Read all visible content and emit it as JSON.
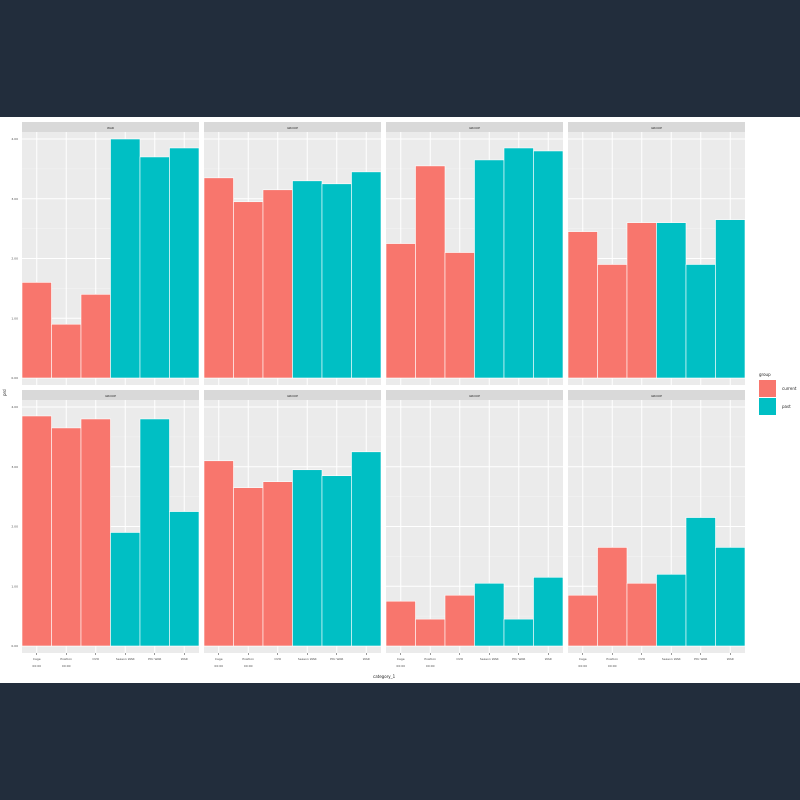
{
  "chart_data": {
    "type": "bar",
    "ylabel": "prd",
    "xlabel": "category_1",
    "ylim": [
      0,
      4
    ],
    "y_ticks": [
      "0.00",
      "1.00",
      "2.00",
      "3.00",
      "4.00"
    ],
    "categories": [
      "Cage",
      "Position",
      "OVO",
      "Season WAR",
      "Pitc WAR",
      "WAR"
    ],
    "extra_tick_line": [
      "00:00",
      "00:00"
    ],
    "legend": {
      "title": "group",
      "entries": [
        {
          "label": "current",
          "color": "#f8766d"
        },
        {
          "label": "past",
          "color": "#00bfc4"
        }
      ]
    },
    "bar_groups": [
      "current",
      "current",
      "current",
      "past",
      "past",
      "past"
    ],
    "panels": [
      {
        "title": "WAR",
        "values": [
          1.6,
          0.9,
          1.4,
          4.0,
          3.7,
          3.85
        ]
      },
      {
        "title": "GROUP",
        "values": [
          3.35,
          2.95,
          3.15,
          3.3,
          3.25,
          3.45
        ]
      },
      {
        "title": "GROUP",
        "values": [
          2.25,
          3.55,
          2.1,
          3.65,
          3.85,
          3.8
        ]
      },
      {
        "title": "GROUP",
        "values": [
          2.45,
          1.9,
          2.6,
          2.6,
          1.9,
          2.65
        ]
      },
      {
        "title": "GROUP",
        "values": [
          3.85,
          3.65,
          3.8,
          1.9,
          3.8,
          2.25
        ]
      },
      {
        "title": "GROUP",
        "values": [
          3.1,
          2.65,
          2.75,
          2.95,
          2.85,
          3.25
        ]
      },
      {
        "title": "GROUP",
        "values": [
          0.75,
          0.45,
          0.85,
          1.05,
          0.45,
          1.15
        ]
      },
      {
        "title": "GROUP",
        "values": [
          0.85,
          1.65,
          1.05,
          1.2,
          2.15,
          1.65
        ]
      }
    ]
  }
}
